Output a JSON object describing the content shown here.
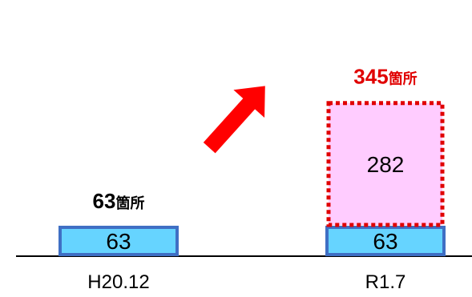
{
  "colors": {
    "base_fill": "#66d4ff",
    "base_stroke": "#3f6fc4",
    "added_fill": "#ffccff",
    "added_stroke": "#e00000",
    "arrow": "#ff0000",
    "total_first": "#000000",
    "total_last": "#e00000"
  },
  "chart_data": {
    "type": "bar",
    "stacked": true,
    "categories": [
      "H20.12",
      "R1.7"
    ],
    "series": [
      {
        "key": "base",
        "values": [
          63,
          63
        ],
        "labels": [
          "63",
          "63"
        ]
      },
      {
        "key": "added",
        "values": [
          0,
          282
        ],
        "labels": [
          "",
          "282"
        ]
      }
    ],
    "totals": [
      {
        "number": "63",
        "unit": "箇所"
      },
      {
        "number": "345",
        "unit": "箇所"
      }
    ],
    "annotation": "up-right-arrow"
  }
}
